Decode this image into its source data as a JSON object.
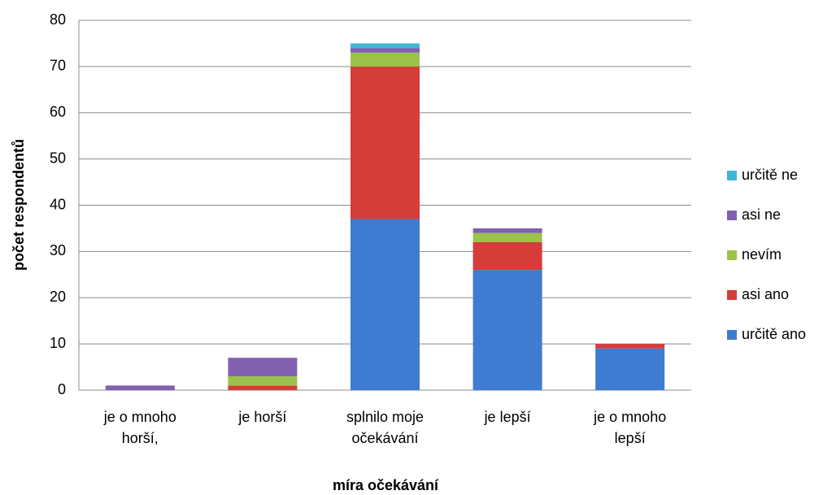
{
  "chart_data": {
    "type": "stacked_bar",
    "x_label": "míra očekávání",
    "y_label": "počet respondentů",
    "categories": [
      "je o mnoho\nhorší,",
      "je horší",
      "splnilo moje\nočekávání",
      "je lepší",
      "je o mnoho\nlepší"
    ],
    "series": [
      {
        "name": "určitě ano",
        "color": "#3f7bd0",
        "values": [
          0,
          0,
          37,
          26,
          9
        ]
      },
      {
        "name": "asi ano",
        "color": "#d43d3a",
        "values": [
          0,
          1,
          33,
          6,
          1
        ]
      },
      {
        "name": "nevím",
        "color": "#9bc24a",
        "values": [
          0,
          2,
          3,
          2,
          0
        ]
      },
      {
        "name": "asi ne",
        "color": "#8160b0",
        "values": [
          1,
          4,
          1,
          1,
          0
        ]
      },
      {
        "name": "určitě ne",
        "color": "#3fb6d6",
        "values": [
          0,
          0,
          1,
          0,
          0
        ]
      }
    ],
    "ylim": [
      0,
      80
    ],
    "yticks": [
      0,
      10,
      20,
      30,
      40,
      50,
      60,
      70,
      80
    ],
    "grid": true,
    "legend": "right"
  }
}
